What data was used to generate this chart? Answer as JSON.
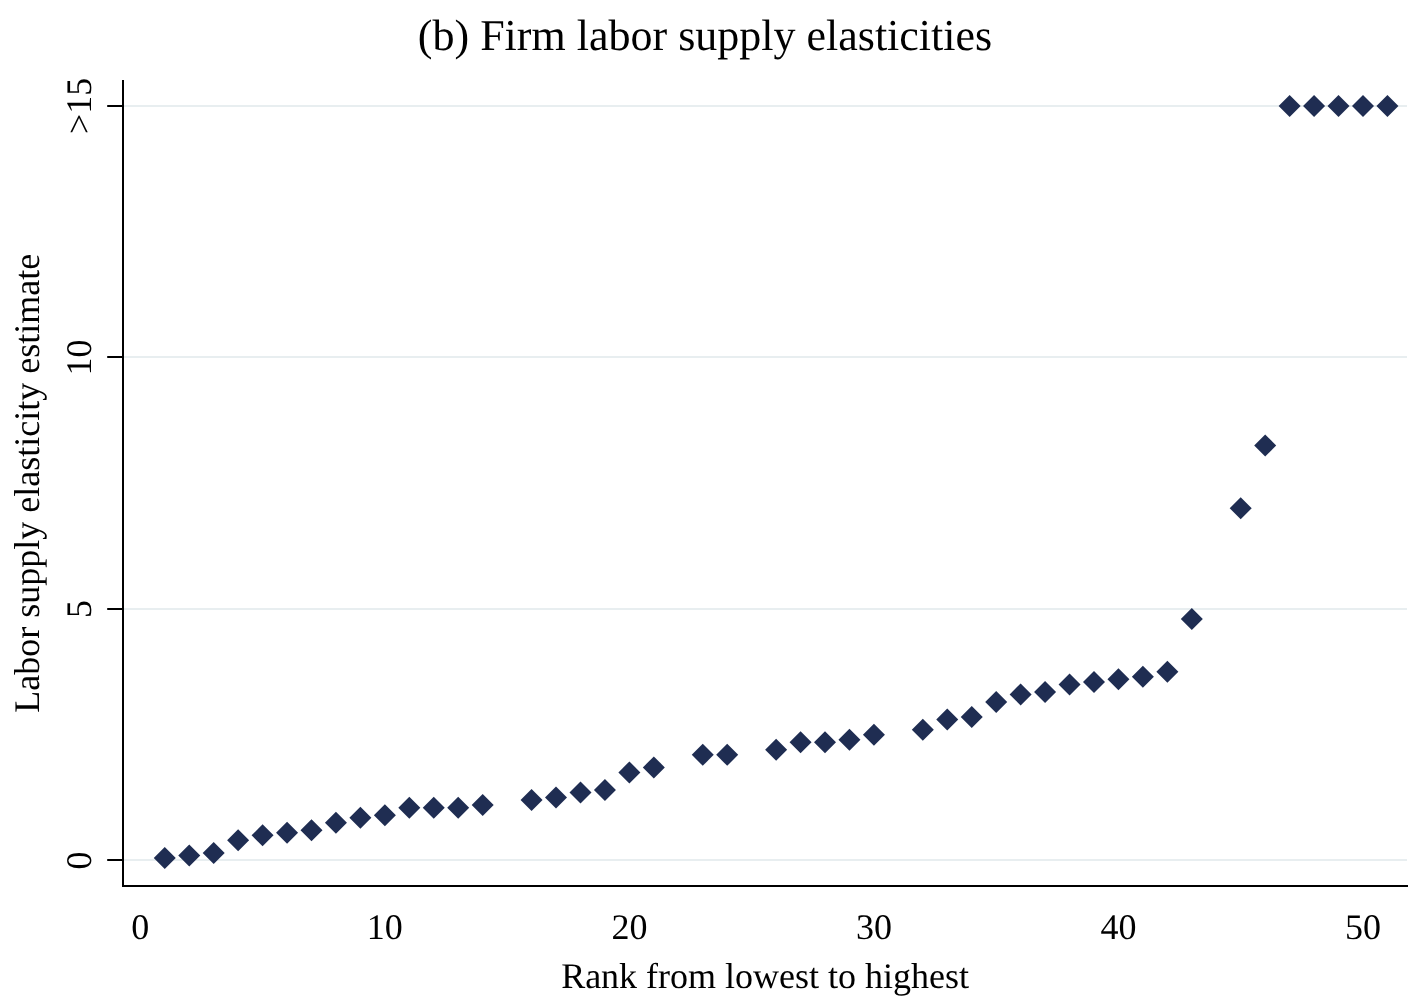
{
  "chart_data": {
    "type": "scatter",
    "title": "(b) Firm labor supply elasticities",
    "xlabel": "Rank from lowest to highest",
    "ylabel": "Labor supply elasticity estimate",
    "x": [
      1,
      2,
      3,
      4,
      5,
      6,
      7,
      8,
      9,
      10,
      11,
      12,
      13,
      14,
      16,
      17,
      18,
      19,
      20,
      21,
      23,
      24,
      26,
      27,
      28,
      29,
      30,
      32,
      33,
      34,
      35,
      36,
      37,
      38,
      39,
      40,
      41,
      42,
      43,
      45,
      46,
      47,
      48,
      49,
      50,
      51
    ],
    "series": [
      {
        "color": "#1f2d52",
        "values": [
          0.05,
          0.1,
          0.15,
          0.4,
          0.5,
          0.55,
          0.6,
          0.75,
          0.85,
          0.9,
          1.05,
          1.05,
          1.05,
          1.1,
          1.2,
          1.25,
          1.35,
          1.4,
          1.75,
          1.85,
          2.1,
          2.1,
          2.2,
          2.35,
          2.35,
          2.4,
          2.5,
          2.6,
          2.8,
          2.85,
          3.15,
          3.3,
          3.35,
          3.5,
          3.55,
          3.6,
          3.65,
          3.75,
          4.8,
          7.0,
          8.25,
          15,
          15,
          15,
          15,
          15
        ]
      }
    ],
    "xlim": [
      -0.7,
      51.8
    ],
    "xticks": [
      0,
      10,
      20,
      30,
      40,
      50
    ],
    "ylim": [
      -0.5,
      15.5
    ],
    "yticks": [
      0,
      5,
      10,
      {
        "value": 15,
        "label": ">15"
      }
    ],
    "grid": "y",
    "legend": false,
    "marker": "diamond"
  }
}
